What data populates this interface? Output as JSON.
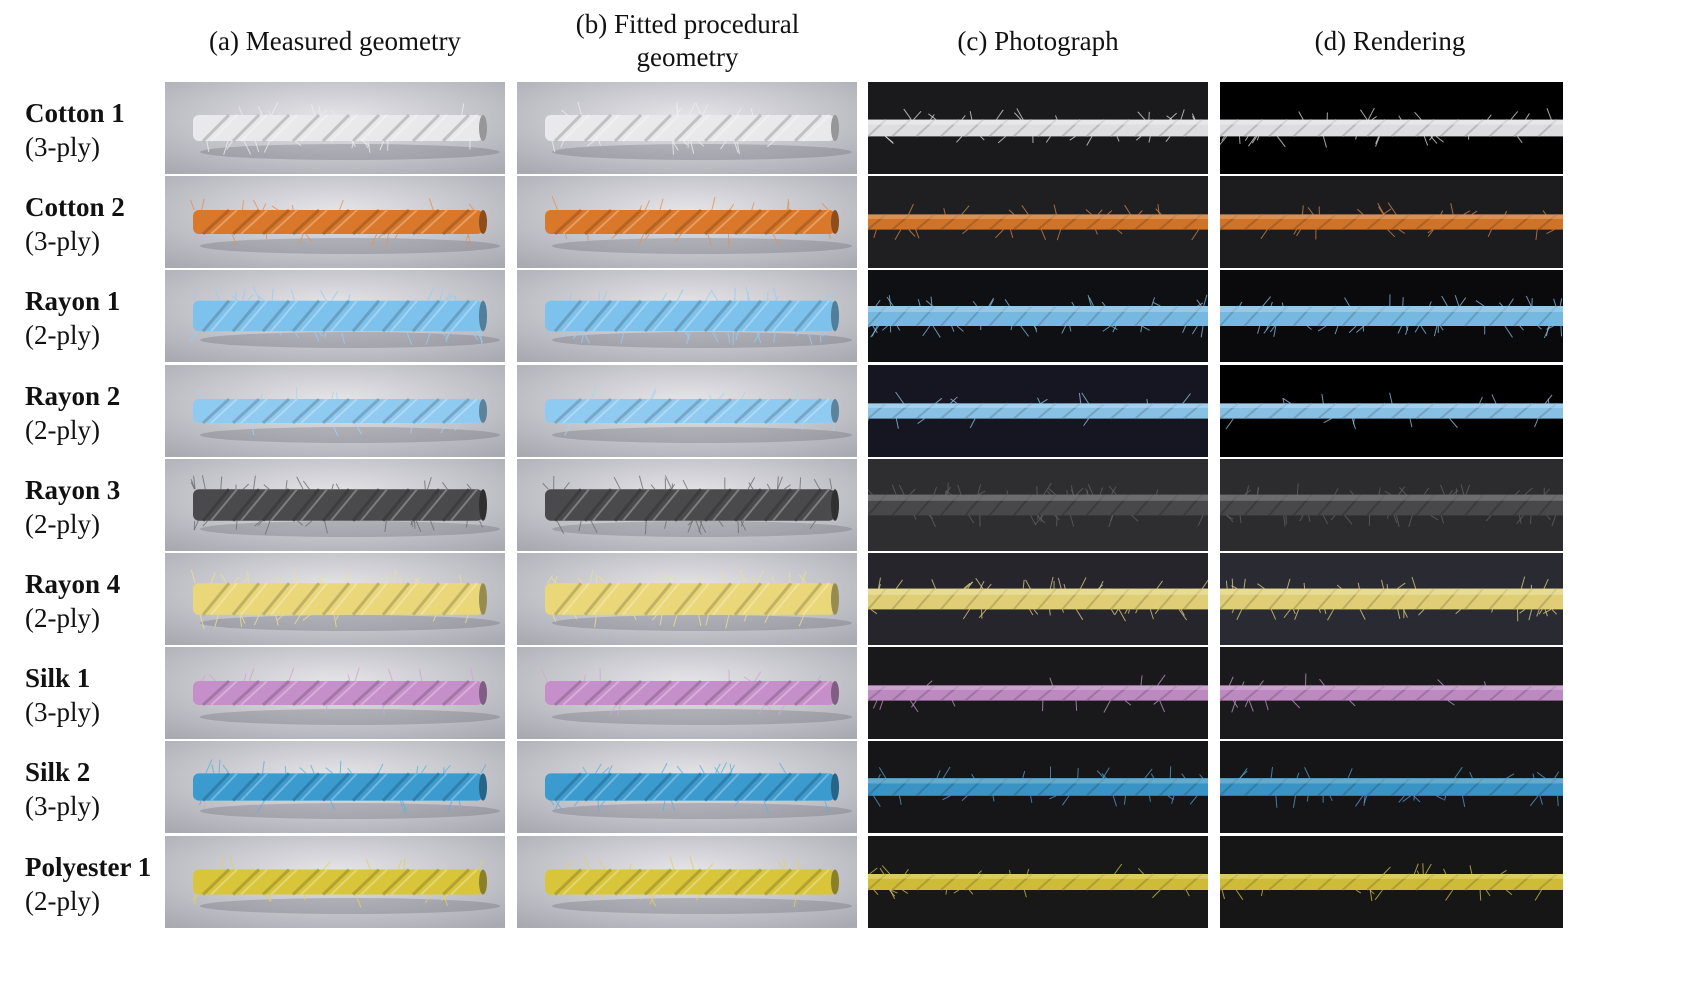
{
  "columns": [
    {
      "label": "(a) Measured geometry",
      "bg": "light"
    },
    {
      "label": "(b) Fitted procedural geometry",
      "bg": "light"
    },
    {
      "label": "(c) Photograph",
      "bg": "dark"
    },
    {
      "label": "(d) Rendering",
      "bg": "dark"
    }
  ],
  "rows": [
    {
      "name": "Cotton 1",
      "ply": "(3-ply)",
      "color": "#e9e9ec",
      "fuzz": 0.6,
      "thick": 0.55,
      "dark_bg": [
        "#1a1a1c",
        "#000000"
      ]
    },
    {
      "name": "Cotton 2",
      "ply": "(3-ply)",
      "color": "#d9782a",
      "fuzz": 0.5,
      "thick": 0.45,
      "dark_bg": [
        "#1f1f22",
        "#1c1c1f"
      ]
    },
    {
      "name": "Rayon 1",
      "ply": "(2-ply)",
      "color": "#7dc2ec",
      "fuzz": 0.9,
      "thick": 0.75,
      "dark_bg": [
        "#0f1014",
        "#0a0a0d"
      ]
    },
    {
      "name": "Rayon 2",
      "ply": "(2-ply)",
      "color": "#8fcaf0",
      "fuzz": 0.3,
      "thick": 0.45,
      "dark_bg": [
        "#161622",
        "#000000"
      ]
    },
    {
      "name": "Rayon 3",
      "ply": "(2-ply)",
      "color": "#4a4a4c",
      "fuzz": 0.9,
      "thick": 0.8,
      "dark_bg": [
        "#2e2e30",
        "#2c2c2e"
      ]
    },
    {
      "name": "Rayon 4",
      "ply": "(2-ply)",
      "color": "#e9d77a",
      "fuzz": 0.8,
      "thick": 0.8,
      "dark_bg": [
        "#25252b",
        "#2a2a32"
      ]
    },
    {
      "name": "Silk 1",
      "ply": "(3-ply)",
      "color": "#c58fc9",
      "fuzz": 0.3,
      "thick": 0.45,
      "dark_bg": [
        "#19191c",
        "#1a1a1d"
      ]
    },
    {
      "name": "Silk 2",
      "ply": "(3-ply)",
      "color": "#3b9bcf",
      "fuzz": 0.6,
      "thick": 0.6,
      "dark_bg": [
        "#161618",
        "#151517"
      ]
    },
    {
      "name": "Polyester 1",
      "ply": "(2-ply)",
      "color": "#d8c53a",
      "fuzz": 0.4,
      "thick": 0.5,
      "dark_bg": [
        "#181818",
        "#161616"
      ]
    }
  ]
}
